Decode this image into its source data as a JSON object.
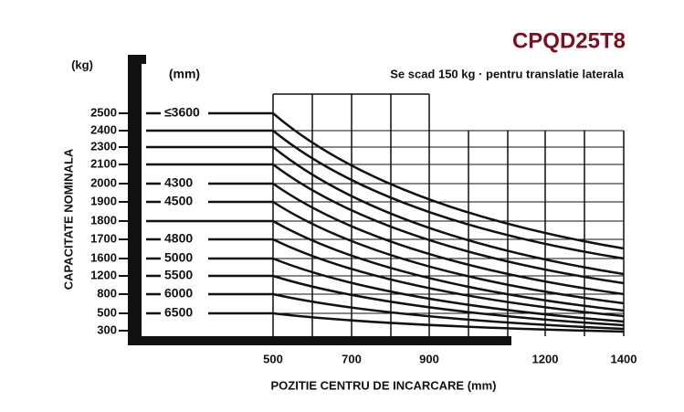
{
  "header": {
    "title": "CPQD25T8",
    "note": "Se scad 150 kg · pentru translatie  laterala"
  },
  "axes": {
    "y_unit": "(kg)",
    "height_unit": "(mm)",
    "y_title": "CAPACITATE NOMINALA",
    "x_title": "POZITIE CENTRU DE INCARCARE (mm)",
    "y_labels": [
      "2500",
      "2400",
      "2300",
      "2100",
      "2000",
      "1900",
      "1800",
      "1700",
      "1600",
      "1200",
      "800",
      "500",
      "300"
    ],
    "x_labels": [
      "500",
      "700",
      "900",
      "1200",
      "1400"
    ]
  },
  "heights": [
    {
      "label": "≤3600",
      "row": 0
    },
    {
      "label": "4300",
      "row": 4
    },
    {
      "label": "4500",
      "row": 5
    },
    {
      "label": "4800",
      "row": 7
    },
    {
      "label": "5000",
      "row": 8
    },
    {
      "label": "5500",
      "row": 9
    },
    {
      "label": "6000",
      "row": 10
    },
    {
      "label": "6500",
      "row": 11
    }
  ]
}
